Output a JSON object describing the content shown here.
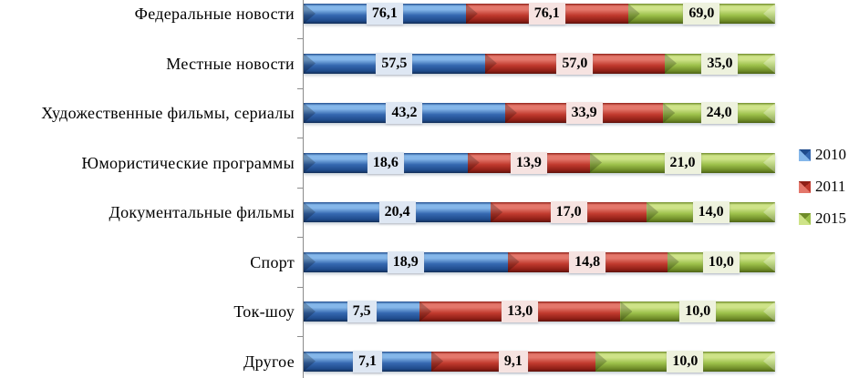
{
  "chart_data": {
    "type": "bar",
    "orientation": "horizontal",
    "stacking": "percent",
    "title": "",
    "xlabel": "",
    "ylabel": "",
    "grid": false,
    "value_label_decimal_separator": ",",
    "value_label_decimals": 1,
    "categories": [
      "Федеральные новости",
      "Местные новости",
      "Художественные фильмы, сериалы",
      "Юмористические программы",
      "Документальные фильмы",
      "Спорт",
      "Ток-шоу",
      "Другое"
    ],
    "series": [
      {
        "name": "2010",
        "values": [
          76.1,
          57.5,
          43.2,
          18.6,
          20.4,
          18.9,
          7.5,
          7.1
        ],
        "color_main": "#3568B0",
        "color_light": "#85B7EA",
        "color_dark": "#1F4B8C",
        "color_deep": "#122E58",
        "label_bg": "#DEE7F3"
      },
      {
        "name": "2011",
        "values": [
          76.1,
          57.0,
          33.9,
          13.9,
          17.0,
          14.8,
          13.0,
          9.1
        ],
        "color_main": "#C03A2E",
        "color_light": "#E4776B",
        "color_dark": "#8F1F16",
        "color_deep": "#5E120C",
        "label_bg": "#F6E3E1"
      },
      {
        "name": "2015",
        "values": [
          69.0,
          35.0,
          24.0,
          21.0,
          14.0,
          10.0,
          10.0,
          10.0
        ],
        "color_main": "#9CC04A",
        "color_light": "#CEE388",
        "color_dark": "#6E8B28",
        "color_deep": "#4C6315",
        "label_bg": "#EEF2DE"
      }
    ],
    "legend": {
      "position": "right",
      "entries": [
        "2010",
        "2011",
        "2015"
      ]
    },
    "axis_color": "#8C8C8C"
  }
}
